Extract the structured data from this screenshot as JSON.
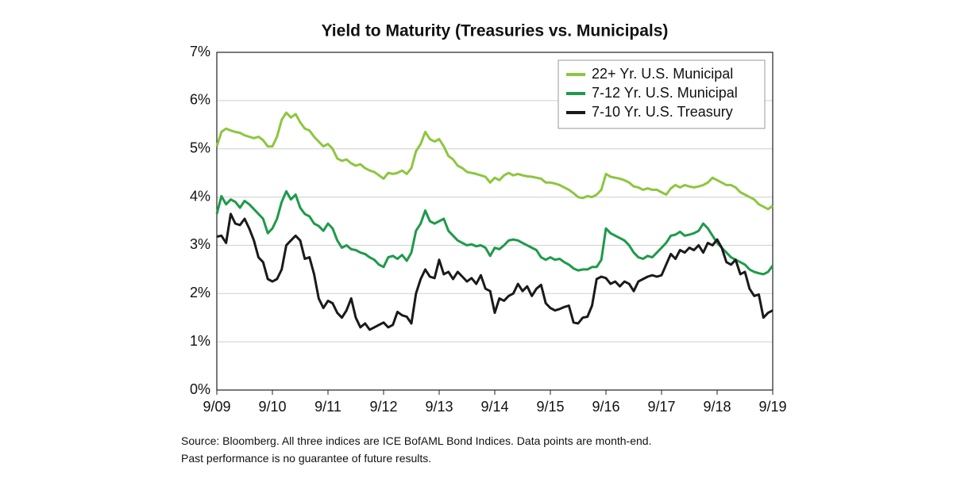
{
  "chart_data": {
    "type": "line",
    "title": "Yield to Maturity (Treasuries vs. Municipals)",
    "categories": [
      "9/09",
      null,
      null,
      null,
      null,
      null,
      null,
      null,
      null,
      null,
      null,
      null,
      "9/10",
      null,
      null,
      null,
      null,
      null,
      null,
      null,
      null,
      null,
      null,
      null,
      "9/11",
      null,
      null,
      null,
      null,
      null,
      null,
      null,
      null,
      null,
      null,
      null,
      "9/12",
      null,
      null,
      null,
      null,
      null,
      null,
      null,
      null,
      null,
      null,
      null,
      "9/13",
      null,
      null,
      null,
      null,
      null,
      null,
      null,
      null,
      null,
      null,
      null,
      "9/14",
      null,
      null,
      null,
      null,
      null,
      null,
      null,
      null,
      null,
      null,
      null,
      "9/15",
      null,
      null,
      null,
      null,
      null,
      null,
      null,
      null,
      null,
      null,
      null,
      "9/16",
      null,
      null,
      null,
      null,
      null,
      null,
      null,
      null,
      null,
      null,
      null,
      "9/17",
      null,
      null,
      null,
      null,
      null,
      null,
      null,
      null,
      null,
      null,
      null,
      "9/18",
      null,
      null,
      null,
      null,
      null,
      null,
      null,
      null,
      null,
      null,
      null,
      "9/19"
    ],
    "series": [
      {
        "name": "22+ Yr. U.S. Municipal",
        "color": "#8dc63f",
        "values": [
          5.05,
          5.35,
          5.42,
          5.38,
          5.35,
          5.33,
          5.28,
          5.25,
          5.22,
          5.25,
          5.18,
          5.05,
          5.05,
          5.25,
          5.6,
          5.75,
          5.65,
          5.72,
          5.55,
          5.42,
          5.38,
          5.25,
          5.15,
          5.05,
          5.1,
          5.0,
          4.8,
          4.75,
          4.78,
          4.7,
          4.65,
          4.68,
          4.6,
          4.55,
          4.52,
          4.45,
          4.38,
          4.5,
          4.48,
          4.5,
          4.55,
          4.48,
          4.6,
          4.95,
          5.1,
          5.35,
          5.2,
          5.15,
          5.2,
          5.05,
          4.85,
          4.78,
          4.65,
          4.6,
          4.52,
          4.5,
          4.48,
          4.45,
          4.42,
          4.3,
          4.4,
          4.35,
          4.45,
          4.5,
          4.45,
          4.48,
          4.45,
          4.43,
          4.42,
          4.4,
          4.38,
          4.3,
          4.3,
          4.28,
          4.25,
          4.2,
          4.15,
          4.08,
          4.0,
          3.98,
          4.02,
          4.0,
          4.05,
          4.15,
          4.48,
          4.42,
          4.4,
          4.38,
          4.35,
          4.3,
          4.22,
          4.2,
          4.15,
          4.18,
          4.15,
          4.15,
          4.1,
          4.05,
          4.18,
          4.25,
          4.2,
          4.25,
          4.22,
          4.2,
          4.22,
          4.25,
          4.3,
          4.4,
          4.35,
          4.3,
          4.25,
          4.25,
          4.2,
          4.1,
          4.05,
          4.0,
          3.95,
          3.85,
          3.8,
          3.75,
          3.82
        ]
      },
      {
        "name": "7-12 Yr. U.S. Municipal",
        "color": "#1e9a4a",
        "values": [
          3.65,
          4.02,
          3.85,
          3.95,
          3.9,
          3.78,
          3.92,
          3.85,
          3.75,
          3.65,
          3.55,
          3.25,
          3.35,
          3.55,
          3.9,
          4.12,
          3.95,
          4.05,
          3.78,
          3.65,
          3.6,
          3.45,
          3.4,
          3.3,
          3.45,
          3.35,
          3.1,
          2.95,
          3.0,
          2.92,
          2.9,
          2.85,
          2.82,
          2.75,
          2.7,
          2.6,
          2.55,
          2.75,
          2.78,
          2.72,
          2.8,
          2.68,
          2.85,
          3.3,
          3.45,
          3.72,
          3.5,
          3.45,
          3.5,
          3.55,
          3.3,
          3.2,
          3.1,
          3.05,
          3.0,
          3.02,
          2.98,
          3.0,
          2.95,
          2.78,
          2.95,
          2.92,
          3.0,
          3.1,
          3.12,
          3.1,
          3.05,
          3.0,
          2.95,
          2.9,
          2.75,
          2.7,
          2.75,
          2.7,
          2.72,
          2.65,
          2.6,
          2.52,
          2.48,
          2.5,
          2.5,
          2.55,
          2.55,
          2.7,
          3.35,
          3.25,
          3.2,
          3.15,
          3.1,
          3.0,
          2.85,
          2.75,
          2.72,
          2.78,
          2.75,
          2.85,
          2.95,
          3.05,
          3.2,
          3.22,
          3.28,
          3.2,
          3.22,
          3.25,
          3.3,
          3.45,
          3.35,
          3.2,
          3.05,
          2.95,
          2.85,
          2.75,
          2.7,
          2.65,
          2.6,
          2.5,
          2.45,
          2.42,
          2.4,
          2.45,
          2.58
        ]
      },
      {
        "name": "7-10 Yr. U.S. Treasury",
        "color": "#1a1a1a",
        "values": [
          3.18,
          3.2,
          3.05,
          3.65,
          3.45,
          3.42,
          3.55,
          3.35,
          3.1,
          2.75,
          2.65,
          2.3,
          2.25,
          2.3,
          2.5,
          3.0,
          3.1,
          3.2,
          3.1,
          2.72,
          2.75,
          2.4,
          1.9,
          1.7,
          1.85,
          1.8,
          1.6,
          1.5,
          1.65,
          1.9,
          1.5,
          1.3,
          1.38,
          1.25,
          1.3,
          1.35,
          1.4,
          1.3,
          1.35,
          1.62,
          1.55,
          1.52,
          1.38,
          2.0,
          2.3,
          2.5,
          2.35,
          2.32,
          2.7,
          2.4,
          2.45,
          2.3,
          2.45,
          2.35,
          2.25,
          2.32,
          2.2,
          2.38,
          2.1,
          2.05,
          1.6,
          1.9,
          1.85,
          1.95,
          2.0,
          2.2,
          2.05,
          2.15,
          1.95,
          2.1,
          2.18,
          1.8,
          1.7,
          1.65,
          1.68,
          1.72,
          1.75,
          1.4,
          1.38,
          1.5,
          1.52,
          1.75,
          2.3,
          2.35,
          2.32,
          2.2,
          2.25,
          2.15,
          2.25,
          2.2,
          2.05,
          2.25,
          2.3,
          2.35,
          2.38,
          2.35,
          2.38,
          2.6,
          2.82,
          2.72,
          2.9,
          2.85,
          2.95,
          2.9,
          3.0,
          2.85,
          3.05,
          3.0,
          3.12,
          2.95,
          2.65,
          2.6,
          2.7,
          2.4,
          2.45,
          2.1,
          1.95,
          1.98,
          1.5,
          1.6,
          1.65
        ]
      }
    ],
    "ylim": [
      0,
      7
    ],
    "yticks": [
      {
        "value": 0,
        "label": "0%"
      },
      {
        "value": 1,
        "label": "1%"
      },
      {
        "value": 2,
        "label": "2%"
      },
      {
        "value": 3,
        "label": "3%"
      },
      {
        "value": 4,
        "label": "4%"
      },
      {
        "value": 5,
        "label": "5%"
      },
      {
        "value": 6,
        "label": "6%"
      },
      {
        "value": 7,
        "label": "7%"
      }
    ],
    "grid": true,
    "legend": "upper right"
  },
  "notes": [
    "Source: Bloomberg. All three indices are ICE BofAML Bond Indices. Data points are month-end.",
    "Past performance is no guarantee of future results."
  ]
}
